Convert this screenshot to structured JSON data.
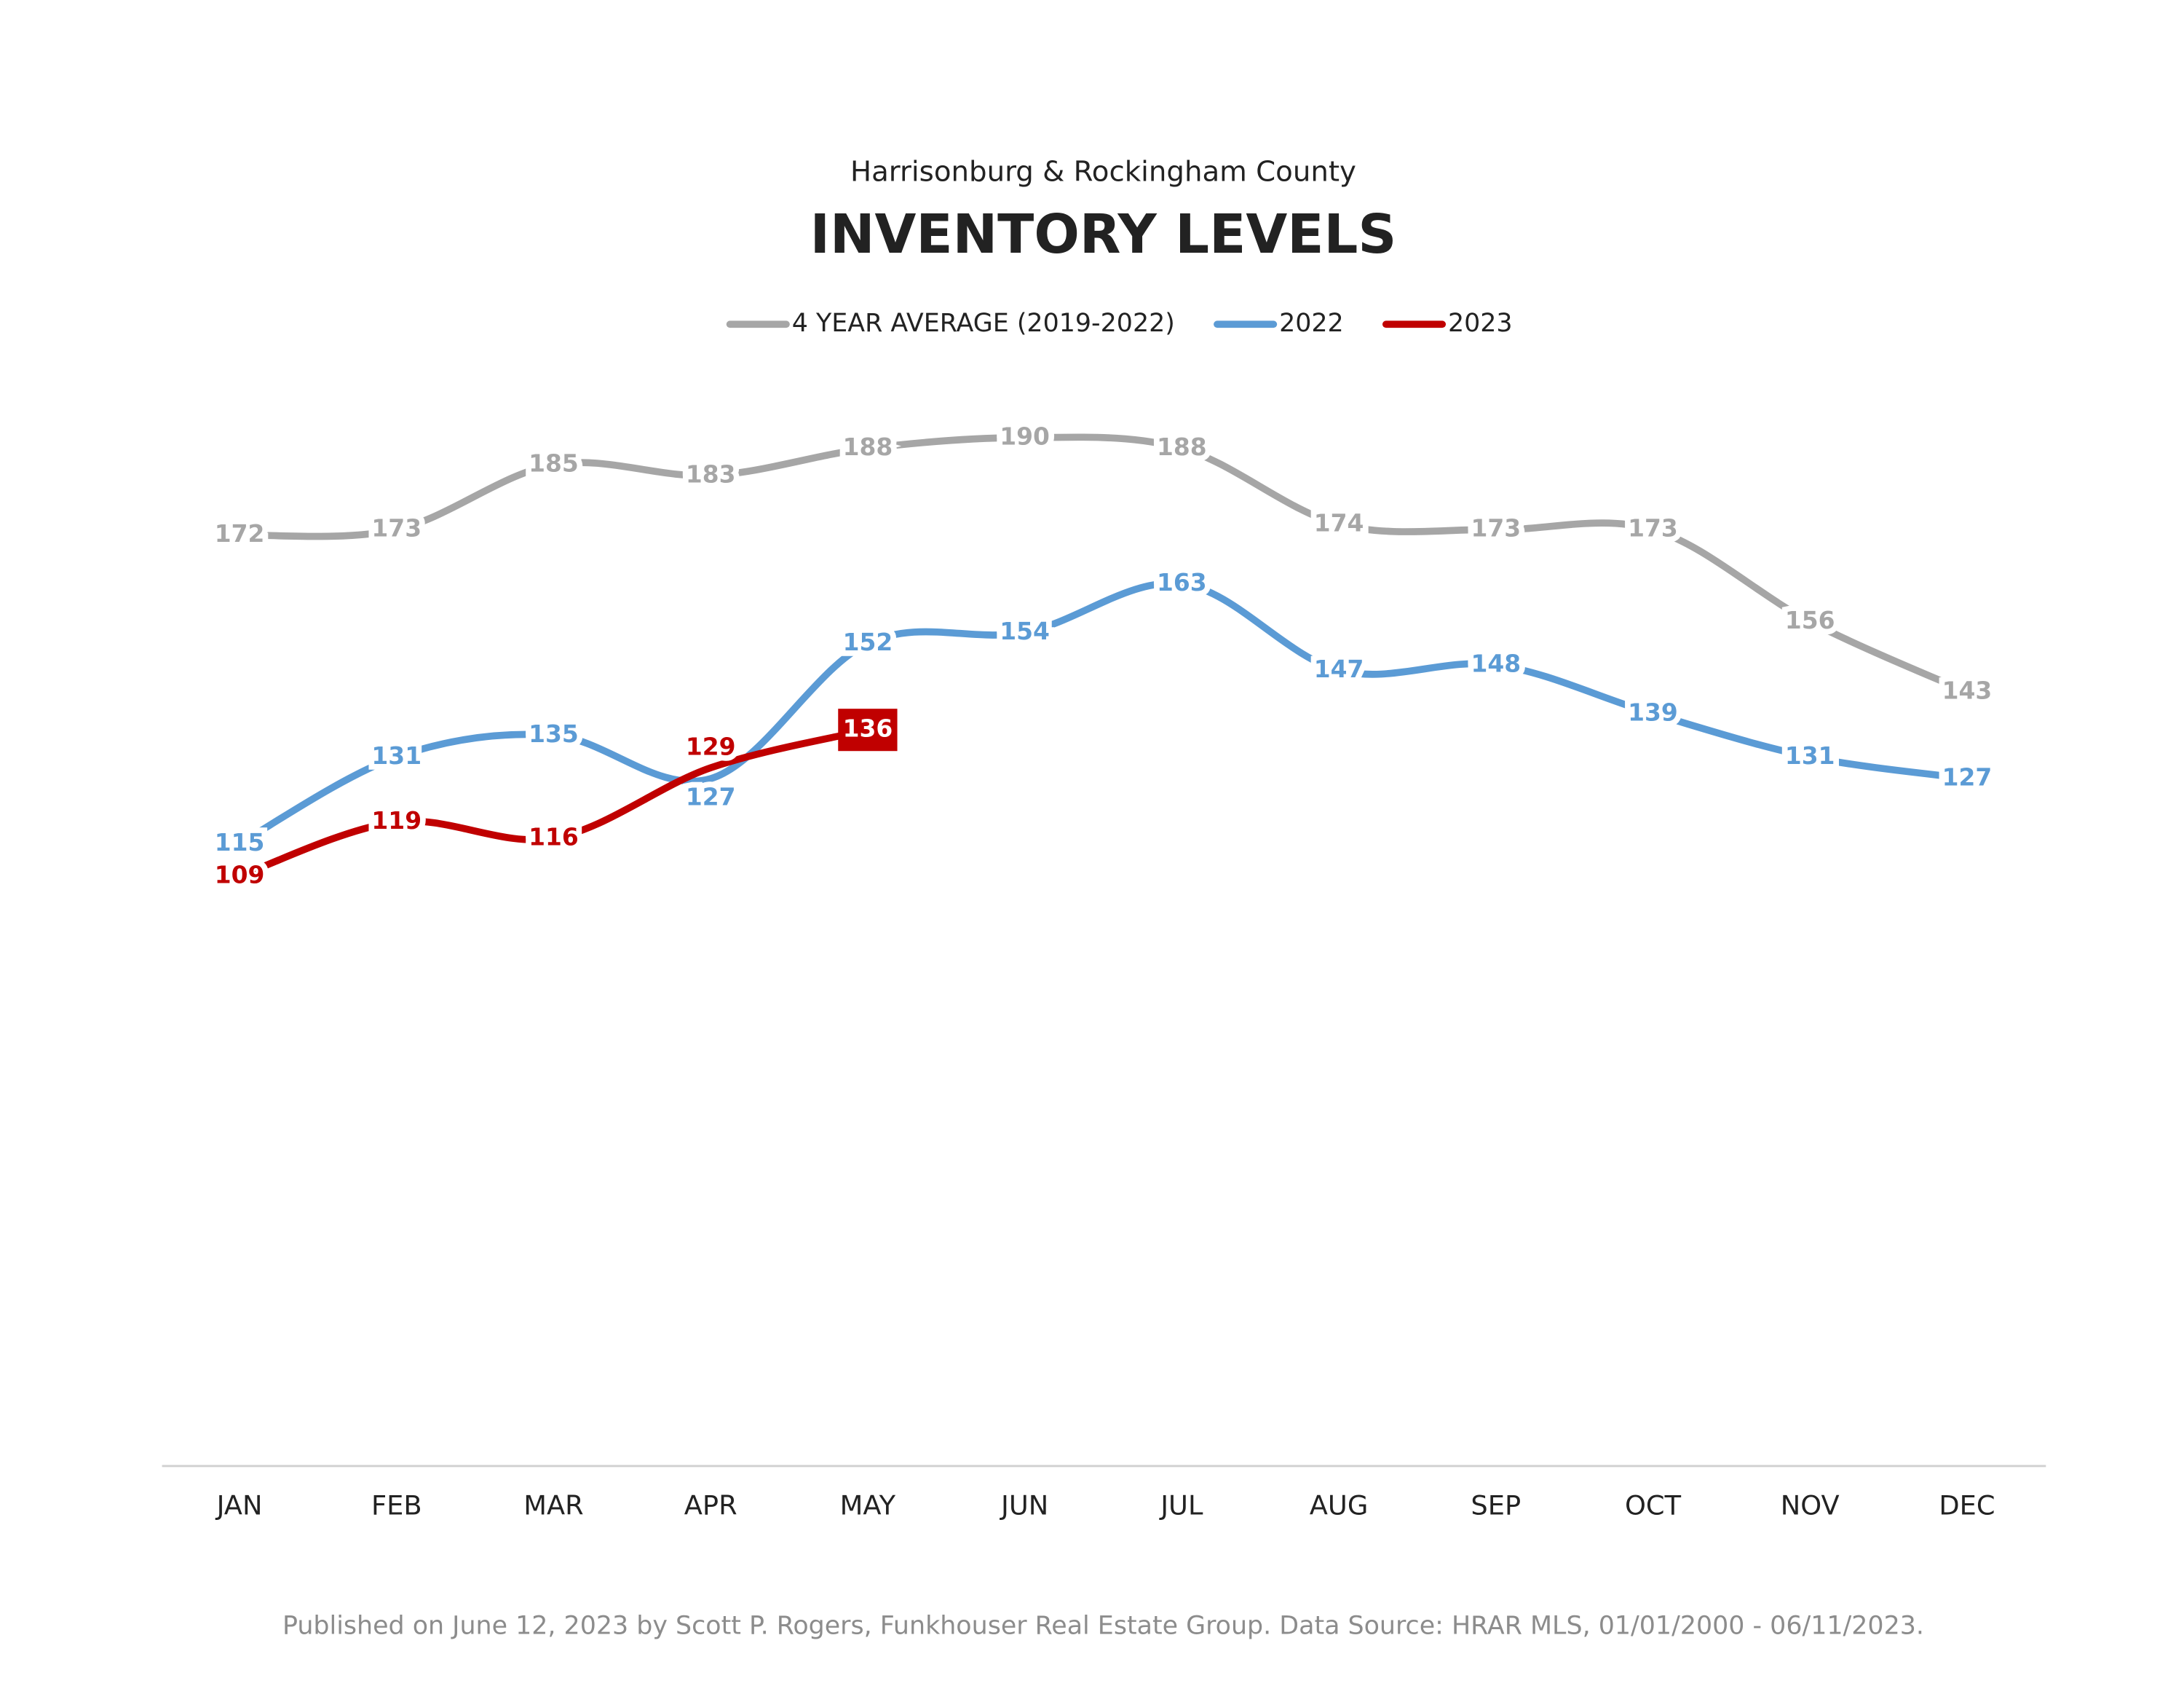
{
  "chart_data": {
    "type": "line",
    "subtitle": "Harrisonburg & Rockingham County",
    "title": "INVENTORY LEVELS",
    "categories": [
      "JAN",
      "FEB",
      "MAR",
      "APR",
      "MAY",
      "JUN",
      "JUL",
      "AUG",
      "SEP",
      "OCT",
      "NOV",
      "DEC"
    ],
    "series": [
      {
        "name": "4 YEAR AVERAGE (2019-2022)",
        "color": "#a6a6a6",
        "values": [
          172,
          173,
          185,
          183,
          188,
          190,
          188,
          174,
          173,
          173,
          156,
          143
        ]
      },
      {
        "name": "2022",
        "color": "#5b9bd5",
        "values": [
          115,
          131,
          135,
          127,
          152,
          154,
          163,
          147,
          148,
          139,
          131,
          127
        ]
      },
      {
        "name": "2023",
        "color": "#c00000",
        "values": [
          109,
          119,
          116,
          129,
          136,
          null,
          null,
          null,
          null,
          null,
          null,
          null
        ]
      }
    ],
    "ylim": [
      0,
      200
    ],
    "legend": "top",
    "footer": "Published on June 12, 2023 by Scott P. Rogers, Funkhouser Real Estate Group. Data Source: HRAR MLS, 01/01/2000 - 06/11/2023."
  }
}
